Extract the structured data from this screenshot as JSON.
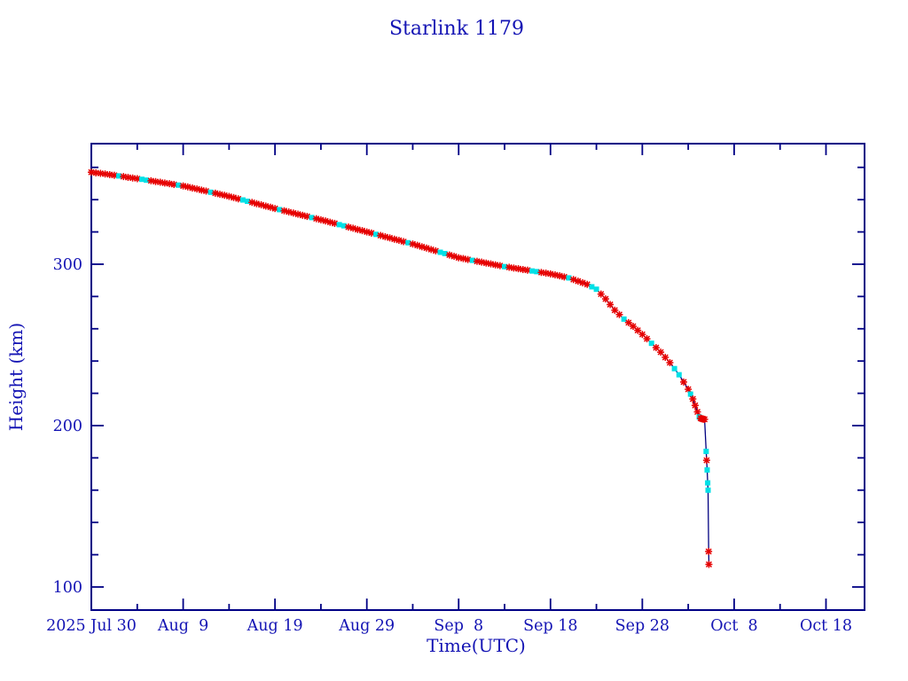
{
  "window": {
    "background": "#ffffff"
  },
  "chart_data": {
    "type": "line",
    "title": "Starlink 1179",
    "xlabel": "Time(UTC)",
    "ylabel": "Height (km)",
    "x_unit": "days since 2025 Jul 30 00:00 UTC",
    "xlim": [
      0,
      84.2
    ],
    "ylim": [
      85.7,
      374.7
    ],
    "grid": false,
    "legend": null,
    "x_major_ticks": [
      {
        "t": 0,
        "label": "2025 Jul 30"
      },
      {
        "t": 10,
        "label": "Aug  9"
      },
      {
        "t": 20,
        "label": "Aug 19"
      },
      {
        "t": 30,
        "label": "Aug 29"
      },
      {
        "t": 40,
        "label": "Sep  8"
      },
      {
        "t": 50,
        "label": "Sep 18"
      },
      {
        "t": 60,
        "label": "Sep 28"
      },
      {
        "t": 70,
        "label": "Oct  8"
      },
      {
        "t": 80,
        "label": "Oct 18"
      }
    ],
    "x_minor_ticks": [
      5,
      15,
      25,
      35,
      45,
      55,
      65,
      75
    ],
    "y_major_ticks": [
      {
        "v": 100,
        "label": "100"
      },
      {
        "v": 200,
        "label": "200"
      },
      {
        "v": 300,
        "label": "300"
      }
    ],
    "y_minor_ticks": [
      120,
      140,
      160,
      180,
      220,
      240,
      260,
      280,
      320,
      340,
      360
    ],
    "colors": {
      "text": "#1414b4",
      "axis": "#000085",
      "line": "#000080",
      "marker_red": "#e60000",
      "marker_cyan": "#00e0e6"
    },
    "marker_types": {
      "r": "red-asterisk",
      "c": "cyan-square"
    },
    "points": [
      [
        0,
        357,
        "r"
      ],
      [
        0.5,
        356.6,
        "r"
      ],
      [
        1,
        356.3,
        "r"
      ],
      [
        1.5,
        355.9,
        "r"
      ],
      [
        2,
        355.5,
        "r"
      ],
      [
        2.5,
        355.1,
        "r"
      ],
      [
        3,
        354.7,
        "c"
      ],
      [
        3.5,
        354.3,
        "r"
      ],
      [
        4,
        353.8,
        "r"
      ],
      [
        4.5,
        353.4,
        "r"
      ],
      [
        5,
        353,
        "r"
      ],
      [
        5.5,
        352.6,
        "c"
      ],
      [
        6,
        352.1,
        "c"
      ],
      [
        6.5,
        351.7,
        "r"
      ],
      [
        7,
        351.2,
        "r"
      ],
      [
        7.5,
        350.8,
        "r"
      ],
      [
        8,
        350.3,
        "r"
      ],
      [
        8.5,
        349.9,
        "r"
      ],
      [
        9,
        349.4,
        "r"
      ],
      [
        9.5,
        349,
        "c"
      ],
      [
        10,
        348.5,
        "r"
      ],
      [
        10.5,
        347.9,
        "r"
      ],
      [
        11,
        347.2,
        "r"
      ],
      [
        11.5,
        346.6,
        "r"
      ],
      [
        12,
        345.9,
        "r"
      ],
      [
        12.5,
        345.3,
        "r"
      ],
      [
        13,
        344.6,
        "c"
      ],
      [
        13.5,
        344,
        "r"
      ],
      [
        14,
        343.3,
        "r"
      ],
      [
        14.5,
        342.7,
        "r"
      ],
      [
        15,
        342,
        "r"
      ],
      [
        15.5,
        341.3,
        "r"
      ],
      [
        16,
        340.5,
        "r"
      ],
      [
        16.5,
        339.8,
        "c"
      ],
      [
        17,
        339,
        "c"
      ],
      [
        17.5,
        338.3,
        "r"
      ],
      [
        18,
        337.5,
        "r"
      ],
      [
        18.5,
        336.8,
        "r"
      ],
      [
        19,
        336,
        "r"
      ],
      [
        19.5,
        335.3,
        "r"
      ],
      [
        20,
        334.5,
        "r"
      ],
      [
        20.5,
        333.8,
        "c"
      ],
      [
        21,
        333.1,
        "r"
      ],
      [
        21.5,
        332.4,
        "r"
      ],
      [
        22,
        331.7,
        "r"
      ],
      [
        22.5,
        331,
        "r"
      ],
      [
        23,
        330.3,
        "r"
      ],
      [
        23.5,
        329.6,
        "r"
      ],
      [
        24,
        328.9,
        "c"
      ],
      [
        24.5,
        328.2,
        "r"
      ],
      [
        25,
        327.5,
        "r"
      ],
      [
        25.5,
        326.8,
        "r"
      ],
      [
        26,
        326,
        "r"
      ],
      [
        26.5,
        325.3,
        "r"
      ],
      [
        27,
        324.5,
        "c"
      ],
      [
        27.5,
        323.8,
        "c"
      ],
      [
        28,
        323,
        "r"
      ],
      [
        28.5,
        322.3,
        "r"
      ],
      [
        29,
        321.5,
        "r"
      ],
      [
        29.5,
        320.8,
        "r"
      ],
      [
        30,
        320,
        "r"
      ],
      [
        30.5,
        319.3,
        "r"
      ],
      [
        31,
        318.5,
        "c"
      ],
      [
        31.5,
        317.8,
        "r"
      ],
      [
        32,
        317,
        "r"
      ],
      [
        32.5,
        316.3,
        "r"
      ],
      [
        33,
        315.5,
        "r"
      ],
      [
        33.5,
        314.8,
        "r"
      ],
      [
        34,
        314,
        "r"
      ],
      [
        34.5,
        313.3,
        "c"
      ],
      [
        35,
        312.5,
        "r"
      ],
      [
        35.5,
        311.7,
        "r"
      ],
      [
        36,
        310.8,
        "r"
      ],
      [
        36.5,
        310,
        "r"
      ],
      [
        37,
        309.1,
        "r"
      ],
      [
        37.5,
        308.3,
        "r"
      ],
      [
        38,
        307.4,
        "c"
      ],
      [
        38.5,
        306.6,
        "c"
      ],
      [
        39,
        305.7,
        "r"
      ],
      [
        39.5,
        304.9,
        "r"
      ],
      [
        40,
        304,
        "r"
      ],
      [
        40.5,
        303.5,
        "r"
      ],
      [
        41,
        302.9,
        "r"
      ],
      [
        41.5,
        302.4,
        "c"
      ],
      [
        42,
        301.8,
        "r"
      ],
      [
        42.5,
        301.3,
        "r"
      ],
      [
        43,
        300.7,
        "r"
      ],
      [
        43.5,
        300.2,
        "r"
      ],
      [
        44,
        299.6,
        "r"
      ],
      [
        44.5,
        299.1,
        "r"
      ],
      [
        45,
        298.5,
        "c"
      ],
      [
        45.5,
        298.1,
        "r"
      ],
      [
        46,
        297.6,
        "r"
      ],
      [
        46.5,
        297.2,
        "r"
      ],
      [
        47,
        296.7,
        "r"
      ],
      [
        47.5,
        296.3,
        "r"
      ],
      [
        48,
        295.8,
        "c"
      ],
      [
        48.5,
        295.4,
        "c"
      ],
      [
        49,
        294.9,
        "r"
      ],
      [
        49.5,
        294.5,
        "r"
      ],
      [
        50,
        294,
        "r"
      ],
      [
        50.5,
        293.4,
        "r"
      ],
      [
        51,
        292.8,
        "r"
      ],
      [
        51.5,
        292.1,
        "r"
      ],
      [
        52,
        291.5,
        "c"
      ],
      [
        52.5,
        290.5,
        "r"
      ],
      [
        53,
        289.5,
        "r"
      ],
      [
        53.5,
        288.5,
        "r"
      ],
      [
        54,
        287.5,
        "r"
      ],
      [
        54.5,
        286,
        "c"
      ],
      [
        55,
        284.5,
        "c"
      ],
      [
        55.5,
        281.5,
        "r"
      ],
      [
        56,
        278.5,
        "r"
      ],
      [
        56.5,
        275,
        "r"
      ],
      [
        57,
        271.5,
        "r"
      ],
      [
        57.5,
        268.8,
        "r"
      ],
      [
        58,
        266,
        "c"
      ],
      [
        58.5,
        263.8,
        "r"
      ],
      [
        59,
        261.5,
        "r"
      ],
      [
        59.5,
        259,
        "r"
      ],
      [
        60,
        256.5,
        "r"
      ],
      [
        60.5,
        253.8,
        "r"
      ],
      [
        61,
        251,
        "c"
      ],
      [
        61.5,
        248.3,
        "r"
      ],
      [
        62,
        245.5,
        "r"
      ],
      [
        62.5,
        242.3,
        "r"
      ],
      [
        63,
        239,
        "r"
      ],
      [
        63.5,
        235.3,
        "c"
      ],
      [
        64,
        231.5,
        "c"
      ],
      [
        64.5,
        227,
        "r"
      ],
      [
        65,
        222.5,
        "r"
      ],
      [
        65.25,
        219.5,
        "c"
      ],
      [
        65.5,
        216.5,
        "r"
      ],
      [
        65.75,
        212.5,
        "r"
      ],
      [
        66,
        208.5,
        "r"
      ],
      [
        66.2,
        205.3,
        "c"
      ],
      [
        66.35,
        204.6,
        "r"
      ],
      [
        66.45,
        204.3,
        "r"
      ],
      [
        66.55,
        204.1,
        "r"
      ],
      [
        66.65,
        204,
        "r"
      ],
      [
        66.78,
        203.9,
        "r"
      ],
      [
        66.95,
        184,
        "c"
      ],
      [
        67,
        178.5,
        "r"
      ],
      [
        67.06,
        172.5,
        "c"
      ],
      [
        67.12,
        164.5,
        "c"
      ],
      [
        67.16,
        160,
        "c"
      ],
      [
        67.22,
        122,
        "r"
      ],
      [
        67.25,
        114,
        "r"
      ]
    ]
  }
}
